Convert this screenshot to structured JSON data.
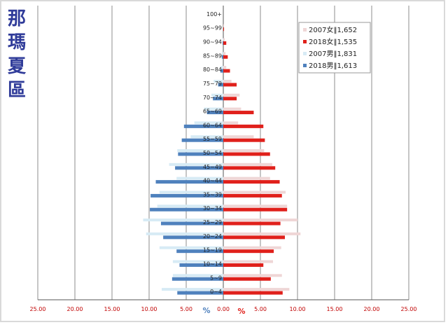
{
  "region_title": [
    "那",
    "瑪",
    "夏",
    "區"
  ],
  "chart_data": {
    "type": "bar",
    "orientation": "horizontal-population-pyramid",
    "title": "那瑪夏區",
    "xlim": [
      -25,
      25
    ],
    "xticks": [
      "25.00",
      "20.00",
      "15.00",
      "10.00",
      "5.00",
      "0.00",
      "5.00",
      "10.00",
      "15.00",
      "20.00",
      "25.00"
    ],
    "xticks_values": [
      -25,
      -20,
      -15,
      -10,
      -5,
      0,
      5,
      10,
      15,
      20,
      25
    ],
    "male_axis_unit": "%",
    "female_axis_unit": "%",
    "grid": "vertical",
    "legend_position": "top-right",
    "categories": [
      "0~4",
      "5~9",
      "10~14",
      "15~19",
      "20~24",
      "25~29",
      "30~34",
      "35~39",
      "40~44",
      "45~49",
      "50~54",
      "55~59",
      "60~64",
      "65~69",
      "70~74",
      "75~79",
      "80~84",
      "85~89",
      "90~94",
      "95~99",
      "100+"
    ],
    "series": [
      {
        "name": "2007女‖1,652",
        "side": "female",
        "color": "#efd6d6",
        "values": [
          8.9,
          7.9,
          6.7,
          7.8,
          10.4,
          10.0,
          8.6,
          8.4,
          6.3,
          6.6,
          5.5,
          4.1,
          2.0,
          2.4,
          2.2,
          1.1,
          0.4,
          0.3,
          0.2,
          0.1,
          0.0
        ]
      },
      {
        "name": "2018女‖1,535",
        "side": "female",
        "color": "#e0201b",
        "values": [
          8.0,
          6.4,
          5.4,
          6.8,
          8.3,
          7.7,
          8.6,
          7.9,
          7.6,
          7.0,
          6.3,
          5.6,
          5.4,
          4.1,
          1.8,
          1.8,
          0.9,
          0.6,
          0.4,
          0.1,
          0.0
        ]
      },
      {
        "name": "2007男‖1,831",
        "side": "male",
        "color": "#d7ebf5",
        "values": [
          8.3,
          6.8,
          6.8,
          8.6,
          10.4,
          10.8,
          8.9,
          8.6,
          6.3,
          7.3,
          6.2,
          4.4,
          3.9,
          2.6,
          1.6,
          1.3,
          0.4,
          0.2,
          0.1,
          0.0,
          0.0
        ]
      },
      {
        "name": "2018男‖1,613",
        "side": "male",
        "color": "#4f81bd",
        "values": [
          6.2,
          6.9,
          5.9,
          6.3,
          8.1,
          8.4,
          9.9,
          9.8,
          9.1,
          6.5,
          6.1,
          5.6,
          5.3,
          2.2,
          1.4,
          0.7,
          0.4,
          0.2,
          0.1,
          0.0,
          0.0
        ]
      }
    ]
  }
}
